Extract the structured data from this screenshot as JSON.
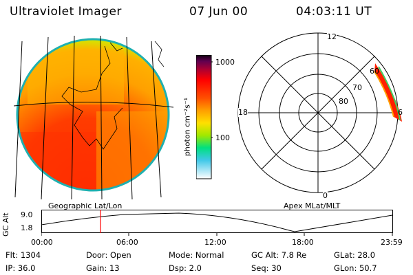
{
  "header": {
    "instrument": "Ultraviolet Imager",
    "date": "07 Jun 00",
    "time": "04:03:11 UT"
  },
  "colorbar": {
    "unit_label": "photon cm⁻²s⁻¹",
    "ticks": [
      "1000",
      "100"
    ],
    "scale": "log"
  },
  "left_panel": {
    "caption": "Geographic Lat/Lon"
  },
  "right_panel": {
    "caption": "Apex MLat/MLT",
    "mlt_labels": [
      "12",
      "18",
      "6",
      "0"
    ],
    "mlat_labels": [
      "60",
      "70",
      "80"
    ]
  },
  "altitude_plot": {
    "ylabel": "GC Alt",
    "yticks": [
      "9.0",
      "1.8"
    ],
    "xticks": [
      "00:00",
      "06:00",
      "12:00",
      "18:00",
      "23:59"
    ],
    "marker_hour": 4.05,
    "marker_color": "#ff0000"
  },
  "info": {
    "flt": "Flt: 1304",
    "ip": "IP: 36.0",
    "door": "Door: Open",
    "gain": "Gain: 13",
    "mode": "Mode: Normal",
    "dsp": "Dsp:   2.0",
    "gcalt": "GC Alt: 7.8 Re",
    "seq": "Seq: 30",
    "glat": "GLat:  28.0",
    "glon": "GLon:  50.7"
  }
}
